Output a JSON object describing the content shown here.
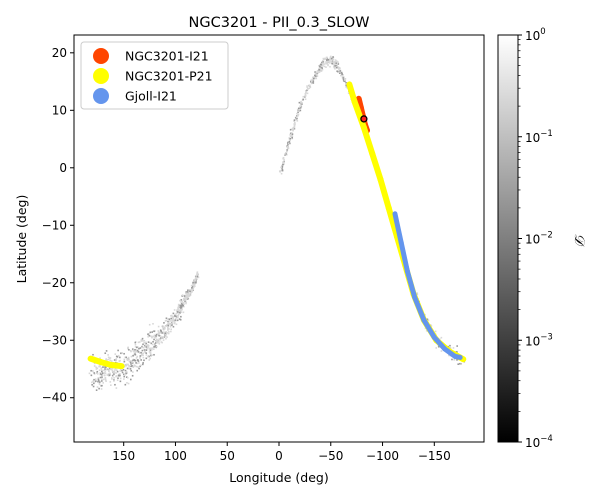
{
  "chart_data": {
    "type": "scatter",
    "title": "NGC3201 - PII_0.3_SLOW",
    "xlabel": "Longitude (deg)",
    "ylabel": "Latitude (deg)",
    "xlim": [
      198,
      -198
    ],
    "ylim": [
      -47.7,
      23.1
    ],
    "xticks": [
      150,
      100,
      50,
      0,
      -50,
      -100,
      -150
    ],
    "xtick_labels": [
      "150",
      "100",
      "50",
      "0",
      "−50",
      "−100",
      "−150"
    ],
    "yticks": [
      20,
      10,
      0,
      -10,
      -20,
      -30,
      -40
    ],
    "ytick_labels": [
      "20",
      "10",
      "0",
      "−10",
      "−20",
      "−30",
      "−40"
    ],
    "grid": false,
    "legend_position": "top-left",
    "simulated_stream": {
      "description_color": "#a0a0a0",
      "trailing_arm": [
        [
          182,
          -36
        ],
        [
          170,
          -35.5
        ],
        [
          160,
          -35
        ],
        [
          150,
          -34.5
        ],
        [
          140,
          -33
        ],
        [
          130,
          -31.5
        ],
        [
          120,
          -30
        ],
        [
          110,
          -28
        ],
        [
          100,
          -25.5
        ],
        [
          92,
          -23
        ],
        [
          85,
          -21
        ],
        [
          79,
          -18.5
        ]
      ],
      "leading_arm": [
        [
          0,
          -1
        ],
        [
          -8,
          4
        ],
        [
          -16,
          9
        ],
        [
          -25,
          13
        ],
        [
          -35,
          16.5
        ],
        [
          -43,
          18.5
        ],
        [
          -50,
          19
        ],
        [
          -57,
          17.5
        ],
        [
          -65,
          14.5
        ],
        [
          -73,
          11
        ],
        [
          -82,
          7
        ],
        [
          -90,
          2.5
        ],
        [
          -98,
          -2
        ],
        [
          -106,
          -7
        ],
        [
          -114,
          -12
        ],
        [
          -122,
          -17
        ],
        [
          -130,
          -22
        ],
        [
          -140,
          -26.5
        ],
        [
          -152,
          -30
        ],
        [
          -165,
          -32
        ],
        [
          -178,
          -33.5
        ]
      ]
    },
    "series": [
      {
        "name": "NGC3201-I21",
        "color": "#ff4500",
        "points": [
          [
            -77,
            12
          ],
          [
            -79,
            10.5
          ],
          [
            -81,
            9
          ],
          [
            -83,
            7.5
          ],
          [
            -85,
            6.5
          ]
        ]
      },
      {
        "name": "NGC3201-P21",
        "color": "#ffff00",
        "points": [
          [
            182,
            -33.2
          ],
          [
            172,
            -33.8
          ],
          [
            162,
            -34.3
          ],
          [
            152,
            -34.5
          ],
          [
            -68,
            14.5
          ],
          [
            -73,
            11.5
          ],
          [
            -82,
            7
          ],
          [
            -90,
            2.5
          ],
          [
            -98,
            -2
          ],
          [
            -106,
            -7
          ],
          [
            -114,
            -12
          ],
          [
            -122,
            -17
          ],
          [
            -130,
            -22
          ],
          [
            -140,
            -26.5
          ],
          [
            -152,
            -30
          ],
          [
            -165,
            -32
          ],
          [
            -178,
            -33.3
          ]
        ]
      },
      {
        "name": "Gjoll-I21",
        "color": "#6495ed",
        "points": [
          [
            -112,
            -8
          ],
          [
            -118,
            -13
          ],
          [
            -124,
            -18
          ],
          [
            -131,
            -22.5
          ],
          [
            -140,
            -26.5
          ],
          [
            -150,
            -29.5
          ],
          [
            -160,
            -31.5
          ],
          [
            -170,
            -32.8
          ],
          [
            -175,
            -33
          ]
        ]
      }
    ],
    "cluster_position": [
      -82,
      8.5
    ],
    "colorbar": {
      "label": "𝒟",
      "scale": "log",
      "range": [
        0.0001,
        1
      ],
      "ticks": [
        1,
        0.1,
        0.01,
        0.001,
        0.0001
      ],
      "tick_labels": [
        [
          "10",
          "0"
        ],
        [
          "10",
          "−1"
        ],
        [
          "10",
          "−2"
        ],
        [
          "10",
          "−3"
        ],
        [
          "10",
          "−4"
        ]
      ],
      "colormap": [
        "#000000",
        "#ffffff"
      ]
    }
  }
}
